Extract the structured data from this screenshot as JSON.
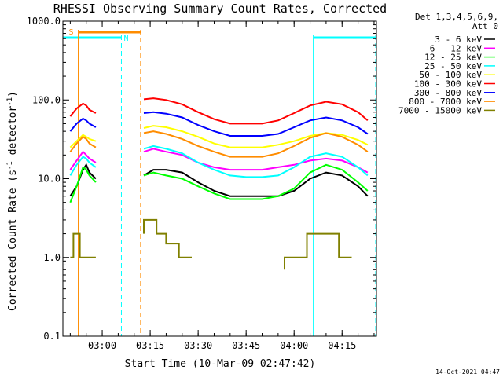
{
  "chart_data": {
    "type": "line",
    "title": "RHESSI Observing Summary Count Rates, Corrected",
    "xlabel": "Start Time (10-Mar-09 02:47:42)",
    "ylabel_main": "Corrected Count Rate (s",
    "ylabel_sup1": "-1",
    "ylabel_mid": " detector",
    "ylabel_sup2": "-1",
    "ylabel_end": ")",
    "yscale": "log",
    "ylim": [
      0.1,
      1000
    ],
    "y_ticks": [
      {
        "value": 0.1,
        "label": "0.1"
      },
      {
        "value": 1,
        "label": "1.0"
      },
      {
        "value": 10,
        "label": "10.0"
      },
      {
        "value": 100,
        "label": "100.0"
      },
      {
        "value": 1000,
        "label": "1000.0"
      }
    ],
    "xlim": [
      "02:47:42",
      "04:25:45"
    ],
    "x_ticks": [
      {
        "value": "03:00",
        "label": "03:00"
      },
      {
        "value": "03:15",
        "label": "03:15"
      },
      {
        "value": "03:30",
        "label": "03:30"
      },
      {
        "value": "03:45",
        "label": "03:45"
      },
      {
        "value": "04:00",
        "label": "04:00"
      },
      {
        "value": "04:15",
        "label": "04:15"
      }
    ],
    "legend_header": [
      "Det 1,3,4,5,6,9,",
      "Att 0"
    ],
    "legend_position": "top-right, outside plot",
    "series": [
      {
        "name": "3 - 6 keV",
        "color": "#000000",
        "x": [
          "02:50",
          "02:52",
          "02:54",
          "02:55",
          "02:56",
          "02:58",
          "03:13",
          "03:16",
          "03:20",
          "03:25",
          "03:30",
          "03:35",
          "03:40",
          "03:45",
          "03:50",
          "03:55",
          "04:00",
          "04:05",
          "04:10",
          "04:15",
          "04:20",
          "04:23"
        ],
        "y": [
          6,
          8,
          13,
          15,
          12,
          10,
          11,
          13,
          13,
          12,
          9,
          7,
          6,
          6,
          6,
          6,
          7,
          10,
          12,
          11,
          8,
          6
        ]
      },
      {
        "name": "6 - 12 keV",
        "color": "#ff00ff",
        "x": [
          "02:50",
          "02:52",
          "02:54",
          "02:55",
          "02:56",
          "02:58",
          "03:13",
          "03:16",
          "03:20",
          "03:25",
          "03:30",
          "03:35",
          "03:40",
          "03:45",
          "03:50",
          "03:55",
          "04:00",
          "04:05",
          "04:10",
          "04:15",
          "04:20",
          "04:23"
        ],
        "y": [
          13,
          17,
          22,
          20,
          18,
          16,
          22,
          24,
          22,
          20,
          16,
          14,
          13,
          13,
          13,
          14,
          15,
          17,
          18,
          17,
          14,
          12
        ]
      },
      {
        "name": "12 - 25 keV",
        "color": "#00ff00",
        "x": [
          "02:50",
          "02:52",
          "02:54",
          "02:55",
          "02:56",
          "02:58",
          "03:13",
          "03:16",
          "03:20",
          "03:25",
          "03:30",
          "03:35",
          "03:40",
          "03:45",
          "03:50",
          "03:55",
          "04:00",
          "04:05",
          "04:10",
          "04:15",
          "04:20",
          "04:23"
        ],
        "y": [
          5,
          8,
          14,
          13,
          11,
          9,
          11,
          12,
          11,
          10,
          8,
          6.5,
          5.5,
          5.5,
          5.5,
          6,
          7.5,
          12,
          15,
          13,
          9,
          7
        ]
      },
      {
        "name": "25 - 50 keV",
        "color": "#00ffff",
        "x": [
          "02:50",
          "02:52",
          "02:54",
          "02:55",
          "02:56",
          "02:58",
          "03:13",
          "03:16",
          "03:20",
          "03:25",
          "03:30",
          "03:35",
          "03:40",
          "03:45",
          "03:50",
          "03:55",
          "04:00",
          "04:05",
          "04:10",
          "04:15",
          "04:20",
          "04:23"
        ],
        "y": [
          11,
          15,
          19,
          18,
          16,
          14,
          24,
          26,
          24,
          21,
          16,
          13,
          11,
          10.5,
          10.5,
          11,
          14,
          19,
          21,
          19,
          14,
          11
        ]
      },
      {
        "name": "50 - 100 keV",
        "color": "#ffff00",
        "x": [
          "02:50",
          "02:52",
          "02:54",
          "02:55",
          "02:56",
          "02:58",
          "03:13",
          "03:16",
          "03:20",
          "03:25",
          "03:30",
          "03:35",
          "03:40",
          "03:45",
          "03:50",
          "03:55",
          "04:00",
          "04:05",
          "04:10",
          "04:15",
          "04:20",
          "04:23"
        ],
        "y": [
          25,
          30,
          36,
          34,
          32,
          30,
          44,
          47,
          45,
          40,
          34,
          28,
          25,
          25,
          25,
          27,
          30,
          35,
          38,
          36,
          31,
          27
        ]
      },
      {
        "name": "100 - 300 keV",
        "color": "#ff0000",
        "x": [
          "02:50",
          "02:52",
          "02:54",
          "02:55",
          "02:56",
          "02:58",
          "03:13",
          "03:16",
          "03:20",
          "03:25",
          "03:30",
          "03:35",
          "03:40",
          "03:45",
          "03:50",
          "03:55",
          "04:00",
          "04:05",
          "04:10",
          "04:15",
          "04:20",
          "04:23"
        ],
        "y": [
          62,
          78,
          90,
          85,
          75,
          68,
          102,
          105,
          100,
          88,
          70,
          57,
          50,
          50,
          50,
          55,
          68,
          85,
          95,
          88,
          70,
          55
        ]
      },
      {
        "name": "300 - 800 keV",
        "color": "#0000ff",
        "x": [
          "02:50",
          "02:52",
          "02:54",
          "02:55",
          "02:56",
          "02:58",
          "03:13",
          "03:16",
          "03:20",
          "03:25",
          "03:30",
          "03:35",
          "03:40",
          "03:45",
          "03:50",
          "03:55",
          "04:00",
          "04:05",
          "04:10",
          "04:15",
          "04:20",
          "04:23"
        ],
        "y": [
          40,
          50,
          58,
          55,
          50,
          45,
          68,
          70,
          67,
          60,
          48,
          40,
          35,
          35,
          35,
          37,
          45,
          55,
          60,
          55,
          45,
          37
        ]
      },
      {
        "name": "800 - 7000 keV",
        "color": "#ff8c00",
        "x": [
          "02:50",
          "02:52",
          "02:54",
          "02:55",
          "02:56",
          "02:58",
          "03:13",
          "03:16",
          "03:20",
          "03:25",
          "03:30",
          "03:35",
          "03:40",
          "03:45",
          "03:50",
          "03:55",
          "04:00",
          "04:05",
          "04:10",
          "04:15",
          "04:20",
          "04:23"
        ],
        "y": [
          22,
          28,
          34,
          32,
          28,
          25,
          38,
          40,
          37,
          32,
          26,
          22,
          19,
          19,
          19,
          21,
          26,
          33,
          38,
          34,
          27,
          22
        ]
      },
      {
        "name": "7000 - 15000 keV",
        "color": "#808000",
        "x": [
          "02:50",
          "02:51",
          "02:51",
          "02:53",
          "02:53",
          "02:58",
          "03:13",
          "03:13",
          "03:17",
          "03:17",
          "03:20",
          "03:20",
          "03:24",
          "03:24",
          "03:28",
          "03:28",
          "03:57",
          "03:57",
          "04:04",
          "04:04",
          "04:14",
          "04:14",
          "04:18"
        ],
        "y": [
          1,
          1,
          2,
          2,
          1,
          1,
          2,
          3,
          3,
          2,
          2,
          1.5,
          1.5,
          1,
          1,
          1,
          0.7,
          1,
          1,
          2,
          2,
          1,
          1
        ]
      }
    ],
    "intervals": {
      "saa_label": "S",
      "night_label": "N",
      "saa_color": "#ff8c00",
      "night_color": "#00ffff",
      "saa_bars": [
        [
          "02:52:30",
          "03:12:00"
        ]
      ],
      "saa_edges": [
        "02:52:30",
        "03:12:00"
      ],
      "night_bars": [
        [
          "02:47:42",
          "03:06:00"
        ],
        [
          "04:06:00",
          "04:25:30"
        ]
      ],
      "night_edges": [
        "02:47:42",
        "03:06:00",
        "04:06:00",
        "04:25:30"
      ]
    }
  },
  "footer": {
    "timestamp": "14-Oct-2021 04:47"
  }
}
